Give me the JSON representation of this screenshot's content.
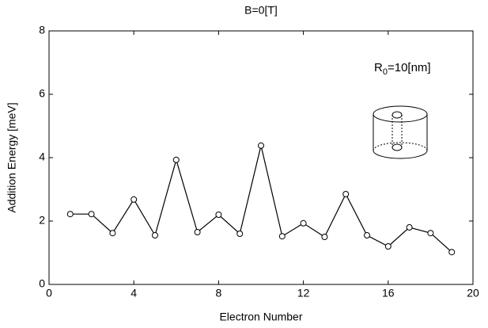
{
  "chart_data": {
    "type": "line",
    "title": "B=0[T]",
    "x_label": "Electron Number",
    "y_label": "Addition Energy [meV]",
    "annotation": [
      "R",
      "0",
      "=10[nm]"
    ],
    "x": [
      1,
      2,
      3,
      4,
      5,
      6,
      7,
      8,
      9,
      10,
      11,
      12,
      13,
      14,
      15,
      16,
      17,
      18,
      19
    ],
    "series": [
      {
        "color": "#000000",
        "values": [
          2.22,
          2.22,
          1.62,
          2.68,
          1.55,
          3.93,
          1.65,
          2.2,
          1.6,
          4.38,
          1.52,
          1.93,
          1.5,
          2.85,
          1.55,
          1.2,
          1.8,
          1.62,
          1.02
        ]
      }
    ],
    "xlim": [
      0,
      20
    ],
    "xticks": [
      0,
      4,
      8,
      12,
      16,
      20
    ],
    "ylim": [
      0,
      8
    ],
    "yticks": [
      0,
      2,
      4,
      6,
      8
    ],
    "grid": false
  }
}
